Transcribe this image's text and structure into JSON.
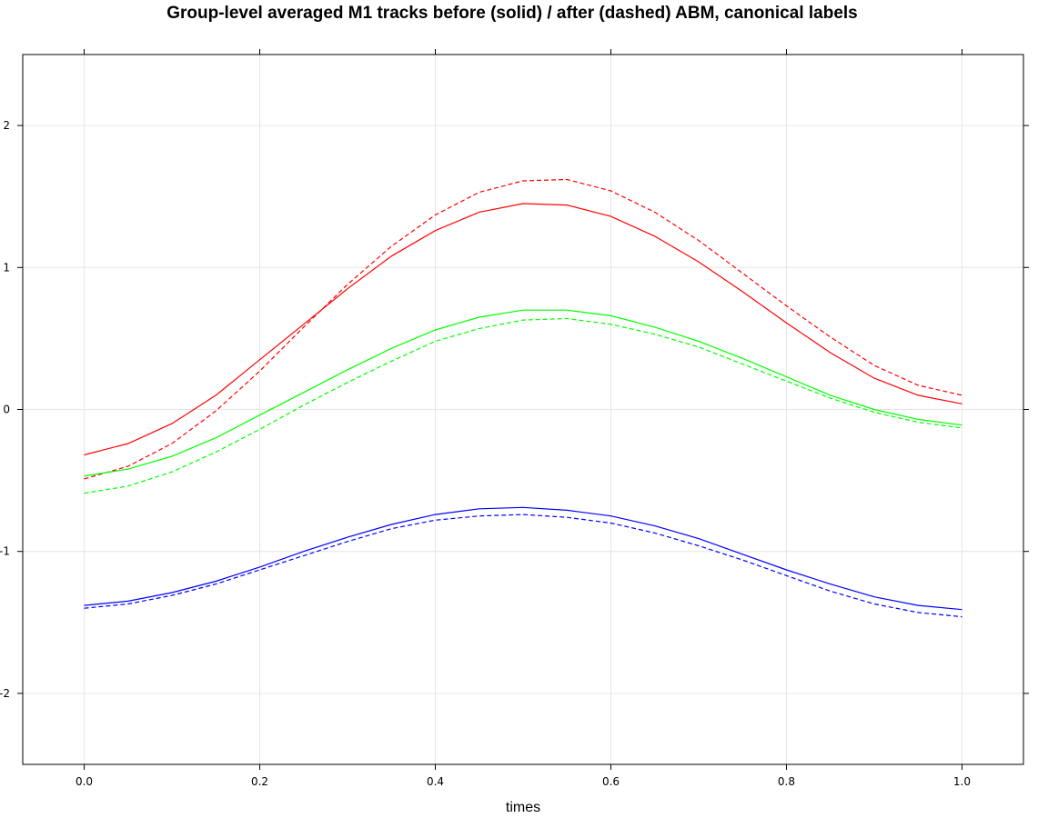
{
  "chart_data": {
    "type": "line",
    "title": "Group-level averaged M1 tracks before (solid) / after (dashed) ABM, canonical labels",
    "xlabel": "times",
    "ylabel": "",
    "xlim": [
      -0.07,
      1.07
    ],
    "ylim": [
      -2.5,
      2.5
    ],
    "xticks": [
      0.0,
      0.2,
      0.4,
      0.6,
      0.8,
      1.0
    ],
    "xtick_labels": [
      "0.0",
      "0.2",
      "0.4",
      "0.6",
      "0.8",
      "1.0"
    ],
    "yticks": [
      -2,
      -1,
      0,
      1,
      2
    ],
    "ytick_labels": [
      "-2",
      "-1",
      "0",
      "1",
      "2"
    ],
    "grid": true,
    "x": [
      0,
      0.05,
      0.1,
      0.15,
      0.2,
      0.25,
      0.3,
      0.35,
      0.4,
      0.45,
      0.5,
      0.55,
      0.6,
      0.65,
      0.7,
      0.75,
      0.8,
      0.85,
      0.9,
      0.95,
      1.0
    ],
    "series": [
      {
        "color": "#ff0000",
        "dash": false,
        "values": [
          -0.32,
          -0.24,
          -0.1,
          0.1,
          0.35,
          0.6,
          0.85,
          1.08,
          1.26,
          1.39,
          1.45,
          1.44,
          1.36,
          1.22,
          1.04,
          0.83,
          0.61,
          0.4,
          0.22,
          0.1,
          0.04
        ]
      },
      {
        "color": "#ff0000",
        "dash": true,
        "values": [
          -0.49,
          -0.4,
          -0.24,
          -0.01,
          0.27,
          0.58,
          0.88,
          1.15,
          1.37,
          1.53,
          1.61,
          1.62,
          1.54,
          1.39,
          1.19,
          0.96,
          0.73,
          0.51,
          0.31,
          0.17,
          0.1
        ]
      },
      {
        "color": "#00ff00",
        "dash": false,
        "values": [
          -0.47,
          -0.42,
          -0.33,
          -0.2,
          -0.04,
          0.12,
          0.28,
          0.43,
          0.56,
          0.65,
          0.7,
          0.7,
          0.66,
          0.58,
          0.48,
          0.36,
          0.23,
          0.1,
          0.0,
          -0.07,
          -0.11
        ]
      },
      {
        "color": "#00ff00",
        "dash": true,
        "values": [
          -0.59,
          -0.54,
          -0.44,
          -0.3,
          -0.14,
          0.03,
          0.19,
          0.34,
          0.48,
          0.57,
          0.63,
          0.64,
          0.6,
          0.53,
          0.44,
          0.32,
          0.2,
          0.08,
          -0.02,
          -0.09,
          -0.13
        ]
      },
      {
        "color": "#0000ff",
        "dash": false,
        "values": [
          -1.38,
          -1.35,
          -1.29,
          -1.21,
          -1.11,
          -1.0,
          -0.9,
          -0.81,
          -0.74,
          -0.7,
          -0.69,
          -0.71,
          -0.75,
          -0.82,
          -0.91,
          -1.02,
          -1.13,
          -1.23,
          -1.32,
          -1.38,
          -1.41
        ]
      },
      {
        "color": "#0000ff",
        "dash": true,
        "values": [
          -1.4,
          -1.37,
          -1.31,
          -1.23,
          -1.13,
          -1.03,
          -0.93,
          -0.84,
          -0.78,
          -0.75,
          -0.74,
          -0.76,
          -0.8,
          -0.87,
          -0.96,
          -1.06,
          -1.17,
          -1.28,
          -1.37,
          -1.43,
          -1.46
        ]
      }
    ]
  }
}
